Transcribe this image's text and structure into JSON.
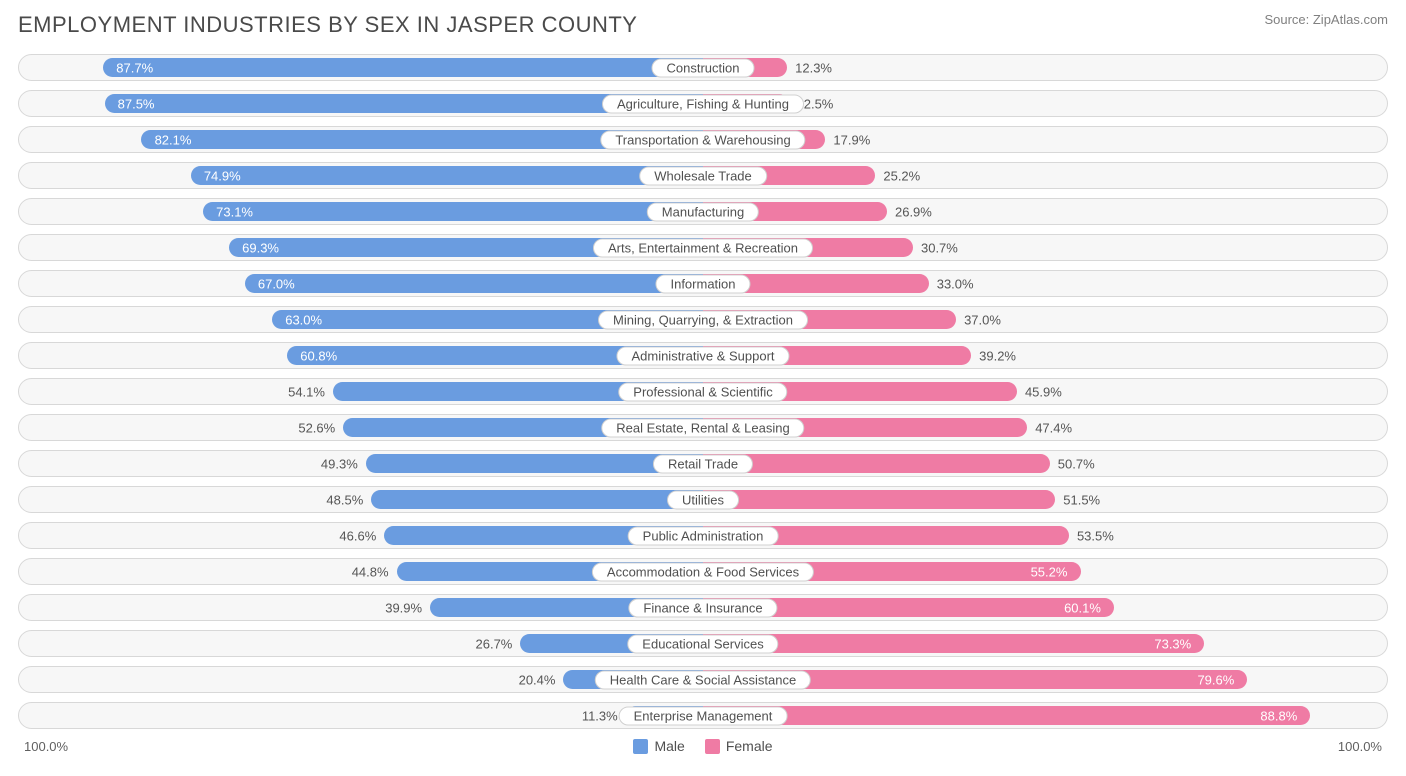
{
  "title": "EMPLOYMENT INDUSTRIES BY SEX IN JASPER COUNTY",
  "source": "Source: ZipAtlas.com",
  "colors": {
    "male": "#6a9ce0",
    "female": "#ef7ba4",
    "male_text_inside": "#ffffff",
    "female_text_inside": "#ffffff",
    "text_outside": "#555555",
    "row_bg": "#f7f7f7",
    "row_border": "#d8d8d8",
    "label_bg": "#ffffff",
    "label_border": "#d0d0d0",
    "title_color": "#4a4a4a"
  },
  "chart": {
    "type": "diverging-bar",
    "axis_left": "100.0%",
    "axis_right": "100.0%",
    "bar_inset_threshold": 55,
    "rows": [
      {
        "label": "Construction",
        "male": 87.7,
        "female": 12.3
      },
      {
        "label": "Agriculture, Fishing & Hunting",
        "male": 87.5,
        "female": 12.5
      },
      {
        "label": "Transportation & Warehousing",
        "male": 82.1,
        "female": 17.9
      },
      {
        "label": "Wholesale Trade",
        "male": 74.9,
        "female": 25.2
      },
      {
        "label": "Manufacturing",
        "male": 73.1,
        "female": 26.9
      },
      {
        "label": "Arts, Entertainment & Recreation",
        "male": 69.3,
        "female": 30.7
      },
      {
        "label": "Information",
        "male": 67.0,
        "female": 33.0
      },
      {
        "label": "Mining, Quarrying, & Extraction",
        "male": 63.0,
        "female": 37.0
      },
      {
        "label": "Administrative & Support",
        "male": 60.8,
        "female": 39.2
      },
      {
        "label": "Professional & Scientific",
        "male": 54.1,
        "female": 45.9
      },
      {
        "label": "Real Estate, Rental & Leasing",
        "male": 52.6,
        "female": 47.4
      },
      {
        "label": "Retail Trade",
        "male": 49.3,
        "female": 50.7
      },
      {
        "label": "Utilities",
        "male": 48.5,
        "female": 51.5
      },
      {
        "label": "Public Administration",
        "male": 46.6,
        "female": 53.5
      },
      {
        "label": "Accommodation & Food Services",
        "male": 44.8,
        "female": 55.2
      },
      {
        "label": "Finance & Insurance",
        "male": 39.9,
        "female": 60.1
      },
      {
        "label": "Educational Services",
        "male": 26.7,
        "female": 73.3
      },
      {
        "label": "Health Care & Social Assistance",
        "male": 20.4,
        "female": 79.6
      },
      {
        "label": "Enterprise Management",
        "male": 11.3,
        "female": 88.8
      }
    ]
  },
  "legend": {
    "male": "Male",
    "female": "Female"
  }
}
